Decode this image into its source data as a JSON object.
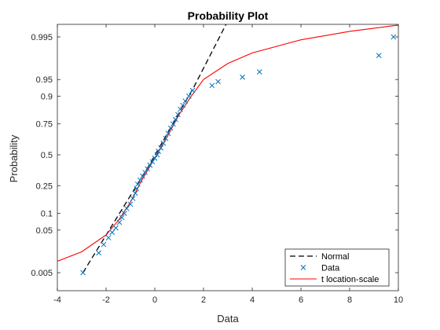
{
  "chart_data": {
    "type": "scatter",
    "title": "Probability Plot",
    "xlabel": "Data",
    "ylabel": "Probability",
    "xlim": [
      -4,
      10
    ],
    "xticks": [
      -4,
      -2,
      0,
      2,
      4,
      6,
      8,
      10
    ],
    "yticks": [
      0.005,
      0.05,
      0.1,
      0.25,
      0.5,
      0.75,
      0.9,
      0.95,
      0.995
    ],
    "yscale": "normal-probability",
    "grid": false,
    "legend_position": "bottom-right",
    "legend": [
      "Normal",
      "Data",
      "t location-scale"
    ],
    "series": [
      {
        "name": "Data",
        "marker": "x",
        "color": "#0072BD",
        "points": [
          [
            -2.95,
            0.005
          ],
          [
            -2.3,
            0.016
          ],
          [
            -2.1,
            0.025
          ],
          [
            -1.9,
            0.035
          ],
          [
            -1.75,
            0.045
          ],
          [
            -1.6,
            0.055
          ],
          [
            -1.45,
            0.07
          ],
          [
            -1.35,
            0.085
          ],
          [
            -1.25,
            0.1
          ],
          [
            -1.15,
            0.12
          ],
          [
            -1.0,
            0.14
          ],
          [
            -0.9,
            0.17
          ],
          [
            -0.8,
            0.2
          ],
          [
            -0.75,
            0.23
          ],
          [
            -0.7,
            0.26
          ],
          [
            -0.6,
            0.29
          ],
          [
            -0.5,
            0.32
          ],
          [
            -0.4,
            0.35
          ],
          [
            -0.3,
            0.38
          ],
          [
            -0.2,
            0.41
          ],
          [
            -0.1,
            0.44
          ],
          [
            0.0,
            0.47
          ],
          [
            0.1,
            0.5
          ],
          [
            0.15,
            0.53
          ],
          [
            0.25,
            0.56
          ],
          [
            0.35,
            0.6
          ],
          [
            0.45,
            0.64
          ],
          [
            0.55,
            0.68
          ],
          [
            0.65,
            0.72
          ],
          [
            0.75,
            0.75
          ],
          [
            0.85,
            0.78
          ],
          [
            0.95,
            0.81
          ],
          [
            1.05,
            0.84
          ],
          [
            1.15,
            0.86
          ],
          [
            1.25,
            0.88
          ],
          [
            1.4,
            0.9
          ],
          [
            1.55,
            0.92
          ],
          [
            2.35,
            0.935
          ],
          [
            2.6,
            0.945
          ],
          [
            3.6,
            0.955
          ],
          [
            4.3,
            0.965
          ],
          [
            9.2,
            0.985
          ],
          [
            9.8,
            0.995
          ]
        ]
      },
      {
        "name": "Normal",
        "style": "dashed",
        "color": "#000000",
        "points": [
          [
            -2.95,
            0.005
          ],
          [
            -0.2,
            0.42
          ],
          [
            1.6,
            0.93
          ],
          [
            3.35,
            0.9995
          ]
        ]
      },
      {
        "name": "t location-scale",
        "style": "solid",
        "color": "#ff0000",
        "points": [
          [
            -4.0,
            0.01
          ],
          [
            -3.0,
            0.017
          ],
          [
            -2.0,
            0.04
          ],
          [
            -1.5,
            0.075
          ],
          [
            -1.0,
            0.15
          ],
          [
            -0.5,
            0.3
          ],
          [
            0.0,
            0.47
          ],
          [
            0.5,
            0.65
          ],
          [
            1.0,
            0.81
          ],
          [
            1.5,
            0.9
          ],
          [
            2.0,
            0.95
          ],
          [
            3.0,
            0.977
          ],
          [
            4.0,
            0.987
          ],
          [
            6.0,
            0.994
          ],
          [
            8.0,
            0.9965
          ],
          [
            10.0,
            0.9977
          ]
        ]
      }
    ]
  }
}
